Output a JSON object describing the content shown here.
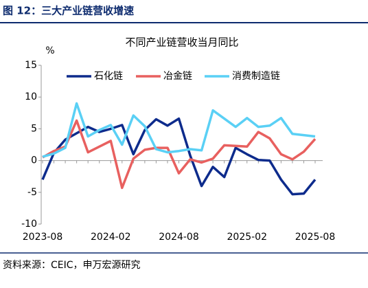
{
  "header": {
    "title": "图 12：三大产业链营收增速"
  },
  "chart_data": {
    "type": "line",
    "title": "不同产业链营收当月同比",
    "y_label": "%",
    "categories": [
      "2023-08",
      null,
      null,
      null,
      null,
      null,
      "2024-02",
      null,
      null,
      null,
      null,
      null,
      "2024-08",
      null,
      null,
      null,
      null,
      null,
      "2025-02",
      null,
      null,
      null,
      null,
      null,
      "2025-08"
    ],
    "series": [
      {
        "name": "石化链",
        "color": "#0d2b8c",
        "values": [
          -3,
          1.2,
          3.3,
          4.3,
          5.3,
          4.5,
          5.0,
          5.6,
          1.0,
          4.8,
          6.5,
          5.5,
          6.6,
          0.8,
          -4.0,
          -1.0,
          -2.6,
          2.0,
          1.0,
          0.1,
          0.0,
          -3.0,
          -5.3,
          -5.2,
          -3.0
        ]
      },
      {
        "name": "冶金链",
        "color": "#e8605f",
        "values": [
          0.5,
          1.5,
          2.2,
          6.3,
          1.3,
          2.2,
          3.1,
          -4.3,
          0.3,
          1.7,
          2.0,
          2.0,
          -2.0,
          0.2,
          -0.3,
          0.3,
          2.4,
          2.3,
          2.2,
          4.5,
          3.5,
          1.0,
          0.2,
          1.4,
          3.4
        ]
      },
      {
        "name": "消费制造链",
        "color": "#5ad0f5",
        "values": [
          0.6,
          1.1,
          2.0,
          9.0,
          3.8,
          4.8,
          5.6,
          2.5,
          7.1,
          5.4,
          1.8,
          1.3,
          1.5,
          1.8,
          1.6,
          7.9,
          6.6,
          5.3,
          6.7,
          5.3,
          5.5,
          6.7,
          4.2,
          4.0,
          3.8
        ]
      }
    ],
    "ylim": [
      -10,
      15
    ],
    "yticks": [
      15,
      10,
      5,
      0,
      -5,
      -10
    ],
    "grid": false,
    "legend": "top"
  },
  "footer": {
    "source": "资料来源：CEIC，申万宏源研究"
  }
}
